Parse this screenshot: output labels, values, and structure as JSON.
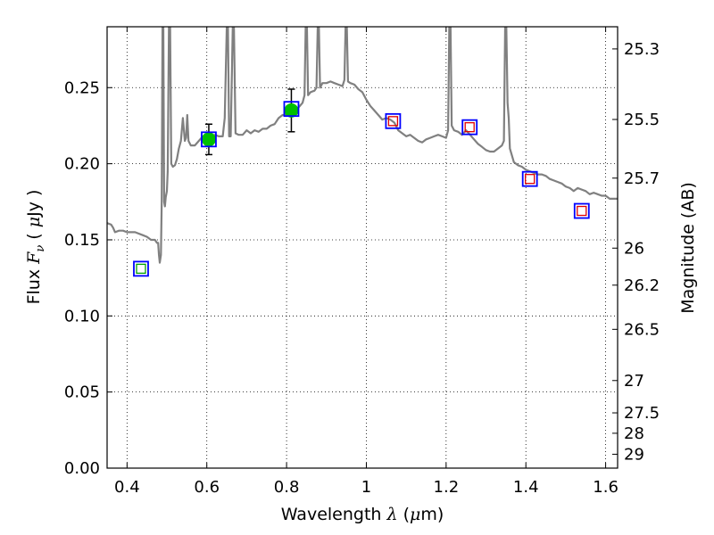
{
  "chart_data": {
    "type": "scatter",
    "x_label_text": "Wavelength ",
    "x_label_symbol": "λ",
    "x_label_unit_open": " (",
    "x_label_unit_mu": "μ",
    "x_label_unit_rest": "m)",
    "y_label_text": "Flux ",
    "y_label_symbol": "F",
    "y_label_subscript": "ν",
    "y_label_unit_open": " ( ",
    "y_label_unit_mu": "μ",
    "y_label_unit_rest": "Jy )",
    "y2_label": "Magnitude (AB)",
    "xlim": [
      0.35,
      1.63
    ],
    "ylim": [
      0.0,
      0.29
    ],
    "grid": true,
    "x_ticks": [
      {
        "v": 0.4,
        "label": "0.4"
      },
      {
        "v": 0.6,
        "label": "0.6"
      },
      {
        "v": 0.8,
        "label": "0.8"
      },
      {
        "v": 1.0,
        "label": "1"
      },
      {
        "v": 1.2,
        "label": "1.2"
      },
      {
        "v": 1.4,
        "label": "1.4"
      },
      {
        "v": 1.6,
        "label": "1.6"
      }
    ],
    "y_ticks": [
      {
        "v": 0.0,
        "label": "0.00"
      },
      {
        "v": 0.05,
        "label": "0.05"
      },
      {
        "v": 0.1,
        "label": "0.10"
      },
      {
        "v": 0.15,
        "label": "0.15"
      },
      {
        "v": 0.2,
        "label": "0.20"
      },
      {
        "v": 0.25,
        "label": "0.25"
      }
    ],
    "mag_ticks": [
      {
        "mag": 25.3,
        "label": "25.3"
      },
      {
        "mag": 25.5,
        "label": "25.5"
      },
      {
        "mag": 25.7,
        "label": "25.7"
      },
      {
        "mag": 26.0,
        "label": "26"
      },
      {
        "mag": 26.2,
        "label": "26.2"
      },
      {
        "mag": 26.5,
        "label": "26.5"
      },
      {
        "mag": 27.0,
        "label": "27"
      },
      {
        "mag": 27.5,
        "label": "27.5"
      },
      {
        "mag": 28.0,
        "label": "28"
      },
      {
        "mag": 29.0,
        "label": "29"
      }
    ],
    "colors": {
      "sed": "#808080",
      "observed": "#00c000",
      "model_box": "#0000ff",
      "upper_box_green": "#00a000",
      "upper_box_red": "#e00000",
      "errorbar": "#000000"
    },
    "sed_curve": [
      [
        0.35,
        0.161
      ],
      [
        0.36,
        0.16
      ],
      [
        0.365,
        0.158
      ],
      [
        0.37,
        0.155
      ],
      [
        0.38,
        0.156
      ],
      [
        0.39,
        0.156
      ],
      [
        0.4,
        0.155
      ],
      [
        0.42,
        0.155
      ],
      [
        0.44,
        0.153
      ],
      [
        0.45,
        0.152
      ],
      [
        0.46,
        0.15
      ],
      [
        0.47,
        0.15
      ],
      [
        0.475,
        0.148
      ],
      [
        0.478,
        0.148
      ],
      [
        0.48,
        0.14
      ],
      [
        0.482,
        0.135
      ],
      [
        0.485,
        0.14
      ],
      [
        0.487,
        0.175
      ],
      [
        0.489,
        0.29
      ],
      [
        0.491,
        0.29
      ],
      [
        0.493,
        0.175
      ],
      [
        0.495,
        0.172
      ],
      [
        0.497,
        0.178
      ],
      [
        0.5,
        0.182
      ],
      [
        0.502,
        0.195
      ],
      [
        0.505,
        0.29
      ],
      [
        0.508,
        0.29
      ],
      [
        0.511,
        0.2
      ],
      [
        0.515,
        0.198
      ],
      [
        0.52,
        0.199
      ],
      [
        0.525,
        0.203
      ],
      [
        0.53,
        0.21
      ],
      [
        0.535,
        0.215
      ],
      [
        0.54,
        0.23
      ],
      [
        0.545,
        0.215
      ],
      [
        0.548,
        0.217
      ],
      [
        0.551,
        0.232
      ],
      [
        0.554,
        0.215
      ],
      [
        0.56,
        0.212
      ],
      [
        0.57,
        0.212
      ],
      [
        0.58,
        0.215
      ],
      [
        0.59,
        0.218
      ],
      [
        0.6,
        0.218
      ],
      [
        0.61,
        0.218
      ],
      [
        0.62,
        0.219
      ],
      [
        0.63,
        0.218
      ],
      [
        0.64,
        0.218
      ],
      [
        0.645,
        0.23
      ],
      [
        0.65,
        0.29
      ],
      [
        0.653,
        0.29
      ],
      [
        0.656,
        0.218
      ],
      [
        0.66,
        0.218
      ],
      [
        0.665,
        0.29
      ],
      [
        0.668,
        0.29
      ],
      [
        0.672,
        0.22
      ],
      [
        0.68,
        0.219
      ],
      [
        0.69,
        0.219
      ],
      [
        0.7,
        0.222
      ],
      [
        0.71,
        0.22
      ],
      [
        0.72,
        0.222
      ],
      [
        0.73,
        0.221
      ],
      [
        0.74,
        0.223
      ],
      [
        0.75,
        0.223
      ],
      [
        0.76,
        0.225
      ],
      [
        0.77,
        0.226
      ],
      [
        0.78,
        0.23
      ],
      [
        0.79,
        0.232
      ],
      [
        0.8,
        0.232
      ],
      [
        0.81,
        0.233
      ],
      [
        0.82,
        0.235
      ],
      [
        0.83,
        0.237
      ],
      [
        0.84,
        0.24
      ],
      [
        0.845,
        0.245
      ],
      [
        0.848,
        0.29
      ],
      [
        0.851,
        0.29
      ],
      [
        0.854,
        0.245
      ],
      [
        0.86,
        0.247
      ],
      [
        0.87,
        0.248
      ],
      [
        0.875,
        0.25
      ],
      [
        0.878,
        0.29
      ],
      [
        0.881,
        0.29
      ],
      [
        0.884,
        0.25
      ],
      [
        0.89,
        0.253
      ],
      [
        0.9,
        0.253
      ],
      [
        0.91,
        0.254
      ],
      [
        0.92,
        0.253
      ],
      [
        0.93,
        0.252
      ],
      [
        0.94,
        0.251
      ],
      [
        0.945,
        0.255
      ],
      [
        0.948,
        0.29
      ],
      [
        0.951,
        0.29
      ],
      [
        0.954,
        0.254
      ],
      [
        0.96,
        0.253
      ],
      [
        0.97,
        0.252
      ],
      [
        0.98,
        0.249
      ],
      [
        0.99,
        0.247
      ],
      [
        1.0,
        0.242
      ],
      [
        1.01,
        0.238
      ],
      [
        1.02,
        0.235
      ],
      [
        1.03,
        0.232
      ],
      [
        1.04,
        0.229
      ],
      [
        1.05,
        0.23
      ],
      [
        1.06,
        0.229
      ],
      [
        1.07,
        0.227
      ],
      [
        1.08,
        0.222
      ],
      [
        1.09,
        0.22
      ],
      [
        1.1,
        0.218
      ],
      [
        1.11,
        0.219
      ],
      [
        1.12,
        0.217
      ],
      [
        1.13,
        0.215
      ],
      [
        1.14,
        0.214
      ],
      [
        1.15,
        0.216
      ],
      [
        1.16,
        0.217
      ],
      [
        1.17,
        0.218
      ],
      [
        1.18,
        0.219
      ],
      [
        1.19,
        0.218
      ],
      [
        1.2,
        0.217
      ],
      [
        1.205,
        0.222
      ],
      [
        1.208,
        0.29
      ],
      [
        1.211,
        0.29
      ],
      [
        1.214,
        0.225
      ],
      [
        1.22,
        0.222
      ],
      [
        1.23,
        0.221
      ],
      [
        1.24,
        0.219
      ],
      [
        1.25,
        0.222
      ],
      [
        1.26,
        0.219
      ],
      [
        1.27,
        0.216
      ],
      [
        1.28,
        0.213
      ],
      [
        1.29,
        0.211
      ],
      [
        1.3,
        0.209
      ],
      [
        1.31,
        0.208
      ],
      [
        1.32,
        0.208
      ],
      [
        1.33,
        0.21
      ],
      [
        1.34,
        0.212
      ],
      [
        1.345,
        0.215
      ],
      [
        1.348,
        0.29
      ],
      [
        1.351,
        0.29
      ],
      [
        1.354,
        0.24
      ],
      [
        1.357,
        0.23
      ],
      [
        1.36,
        0.21
      ],
      [
        1.37,
        0.201
      ],
      [
        1.38,
        0.199
      ],
      [
        1.39,
        0.198
      ],
      [
        1.4,
        0.196
      ],
      [
        1.41,
        0.195
      ],
      [
        1.42,
        0.194
      ],
      [
        1.43,
        0.193
      ],
      [
        1.44,
        0.193
      ],
      [
        1.45,
        0.192
      ],
      [
        1.46,
        0.19
      ],
      [
        1.47,
        0.189
      ],
      [
        1.48,
        0.188
      ],
      [
        1.49,
        0.187
      ],
      [
        1.5,
        0.185
      ],
      [
        1.51,
        0.184
      ],
      [
        1.52,
        0.182
      ],
      [
        1.53,
        0.184
      ],
      [
        1.54,
        0.183
      ],
      [
        1.55,
        0.182
      ],
      [
        1.56,
        0.18
      ],
      [
        1.57,
        0.181
      ],
      [
        1.58,
        0.18
      ],
      [
        1.59,
        0.179
      ],
      [
        1.6,
        0.179
      ],
      [
        1.61,
        0.177
      ],
      [
        1.62,
        0.177
      ],
      [
        1.63,
        0.177
      ]
    ],
    "observed_points": [
      {
        "x": 0.605,
        "y": 0.216,
        "yerr": 0.01
      },
      {
        "x": 0.812,
        "y": 0.235,
        "yerr": 0.014
      }
    ],
    "model_boxes": [
      {
        "x": 0.435,
        "y": 0.131,
        "inner": "green"
      },
      {
        "x": 0.605,
        "y": 0.216,
        "inner": "none"
      },
      {
        "x": 0.812,
        "y": 0.236,
        "inner": "none"
      },
      {
        "x": 1.067,
        "y": 0.228,
        "inner": "red"
      },
      {
        "x": 1.259,
        "y": 0.224,
        "inner": "red"
      },
      {
        "x": 1.41,
        "y": 0.19,
        "inner": "red"
      },
      {
        "x": 1.54,
        "y": 0.169,
        "inner": "red"
      }
    ]
  }
}
